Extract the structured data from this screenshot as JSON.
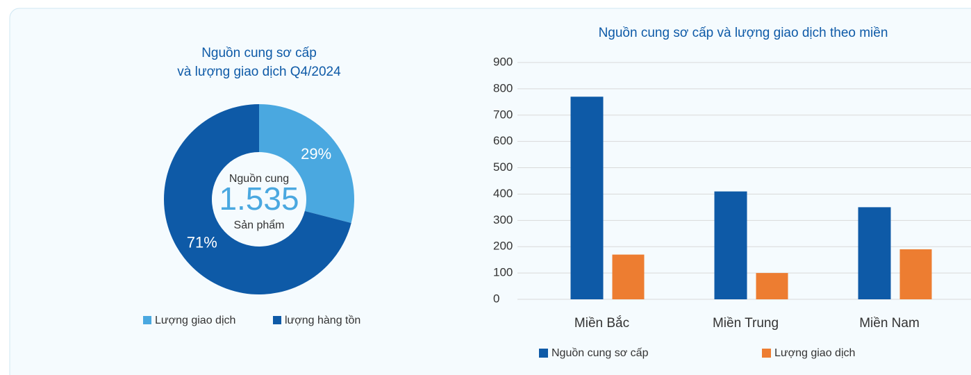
{
  "chart_data": [
    {
      "type": "donut",
      "title": [
        "Nguồn cung sơ cấp",
        "và lượng giao dịch Q4/2024"
      ],
      "categories": [
        "Lượng giao dịch",
        "lượng hàng tồn"
      ],
      "values": [
        29,
        71
      ],
      "value_labels": [
        "29%",
        "71%"
      ],
      "colors": [
        "#4aa8e0",
        "#0e5aa7"
      ],
      "center_label": "Nguồn cung",
      "center_value": "1.535",
      "center_unit": "Sản phẩm"
    },
    {
      "type": "bar",
      "title": "Nguồn cung sơ cấp và lượng giao dịch theo miền",
      "categories": [
        "Miền Bắc",
        "Miền Trung",
        "Miền Nam"
      ],
      "series": [
        {
          "name": "Nguồn cung sơ cấp",
          "color": "#0e5aa7",
          "values": [
            770,
            410,
            350
          ]
        },
        {
          "name": "Lượng giao dịch",
          "color": "#ed7d31",
          "values": [
            170,
            100,
            190
          ]
        }
      ],
      "ylim": [
        0,
        900
      ],
      "yticks": [
        0,
        100,
        200,
        300,
        400,
        500,
        600,
        700,
        800,
        900
      ],
      "grid": true
    }
  ]
}
